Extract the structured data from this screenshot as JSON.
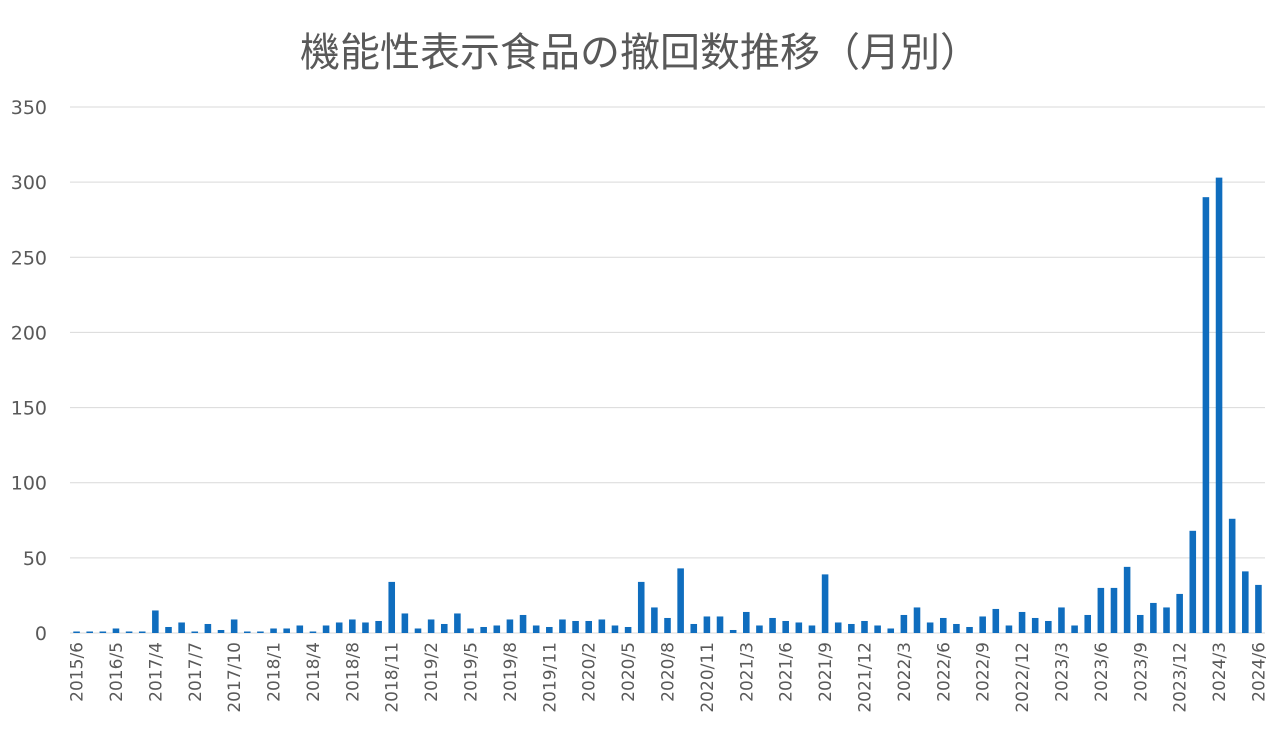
{
  "chart_data": {
    "type": "bar",
    "title": "機能性表示食品の撤回数推移（月別）",
    "xlabel": "",
    "ylabel": "",
    "ylim": [
      0,
      350
    ],
    "yticks": [
      "0",
      "50",
      "100",
      "150",
      "200",
      "250",
      "300",
      "350"
    ],
    "grid": true,
    "legend": "none",
    "bar_color": "#0F6DBE",
    "grid_color": "#D9D9D9",
    "x_tick_labels": [
      {
        "index": 0,
        "label": "2015/6"
      },
      {
        "index": 3,
        "label": "2016/5"
      },
      {
        "index": 6,
        "label": "2017/4"
      },
      {
        "index": 9,
        "label": "2017/7"
      },
      {
        "index": 12,
        "label": "2017/10"
      },
      {
        "index": 15,
        "label": "2018/1"
      },
      {
        "index": 18,
        "label": "2018/4"
      },
      {
        "index": 21,
        "label": "2018/8"
      },
      {
        "index": 24,
        "label": "2018/11"
      },
      {
        "index": 27,
        "label": "2019/2"
      },
      {
        "index": 30,
        "label": "2019/5"
      },
      {
        "index": 33,
        "label": "2019/8"
      },
      {
        "index": 36,
        "label": "2019/11"
      },
      {
        "index": 39,
        "label": "2020/2"
      },
      {
        "index": 42,
        "label": "2020/5"
      },
      {
        "index": 45,
        "label": "2020/8"
      },
      {
        "index": 48,
        "label": "2020/11"
      },
      {
        "index": 51,
        "label": "2021/3"
      },
      {
        "index": 54,
        "label": "2021/6"
      },
      {
        "index": 57,
        "label": "2021/9"
      },
      {
        "index": 60,
        "label": "2021/12"
      },
      {
        "index": 63,
        "label": "2022/3"
      },
      {
        "index": 66,
        "label": "2022/6"
      },
      {
        "index": 69,
        "label": "2022/9"
      },
      {
        "index": 72,
        "label": "2022/12"
      },
      {
        "index": 75,
        "label": "2023/3"
      },
      {
        "index": 78,
        "label": "2023/6"
      },
      {
        "index": 81,
        "label": "2023/9"
      },
      {
        "index": 84,
        "label": "2023/12"
      },
      {
        "index": 87,
        "label": "2024/3"
      },
      {
        "index": 90,
        "label": "2024/6"
      }
    ],
    "values": [
      1,
      1,
      1,
      3,
      1,
      1,
      15,
      4,
      7,
      1,
      6,
      2,
      9,
      1,
      1,
      3,
      3,
      5,
      1,
      5,
      7,
      9,
      7,
      8,
      34,
      13,
      3,
      9,
      6,
      13,
      3,
      4,
      5,
      9,
      12,
      5,
      4,
      9,
      8,
      8,
      9,
      5,
      4,
      34,
      17,
      10,
      43,
      6,
      11,
      11,
      2,
      14,
      5,
      10,
      8,
      7,
      5,
      39,
      7,
      6,
      8,
      5,
      3,
      12,
      17,
      7,
      10,
      6,
      4,
      11,
      16,
      5,
      14,
      10,
      8,
      17,
      5,
      12,
      30,
      30,
      44,
      12,
      20,
      17,
      26,
      68,
      290,
      303,
      76,
      41,
      32
    ]
  }
}
